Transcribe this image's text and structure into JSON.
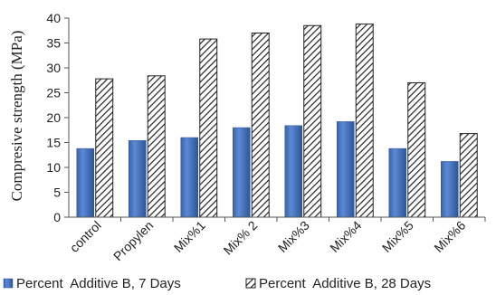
{
  "chart_data": {
    "type": "bar",
    "title": "",
    "xlabel": "",
    "ylabel": "Compresive strength (MPa)",
    "ylim": [
      0,
      40
    ],
    "yticks": [
      0,
      5,
      10,
      15,
      20,
      25,
      30,
      35,
      40
    ],
    "grid": false,
    "legend_position": "bottom",
    "categories": [
      "control",
      "Propylen",
      "Mix%1",
      "Mix% 2",
      "Mix%3",
      "Mix%4",
      "Mix%5",
      "Mix%6"
    ],
    "series": [
      {
        "name": "Percent  Additive B, 7 Days",
        "color": "#4472c4",
        "fill": "solid",
        "values": [
          13.8,
          15.4,
          16.0,
          18.0,
          18.4,
          19.2,
          13.8,
          11.2
        ]
      },
      {
        "name": "Percent  Additive B, 28 Days",
        "color": "#ffffff",
        "fill": "diagonal-hatch",
        "values": [
          27.8,
          28.4,
          35.8,
          37.0,
          38.5,
          38.8,
          27.0,
          16.8
        ]
      }
    ]
  }
}
